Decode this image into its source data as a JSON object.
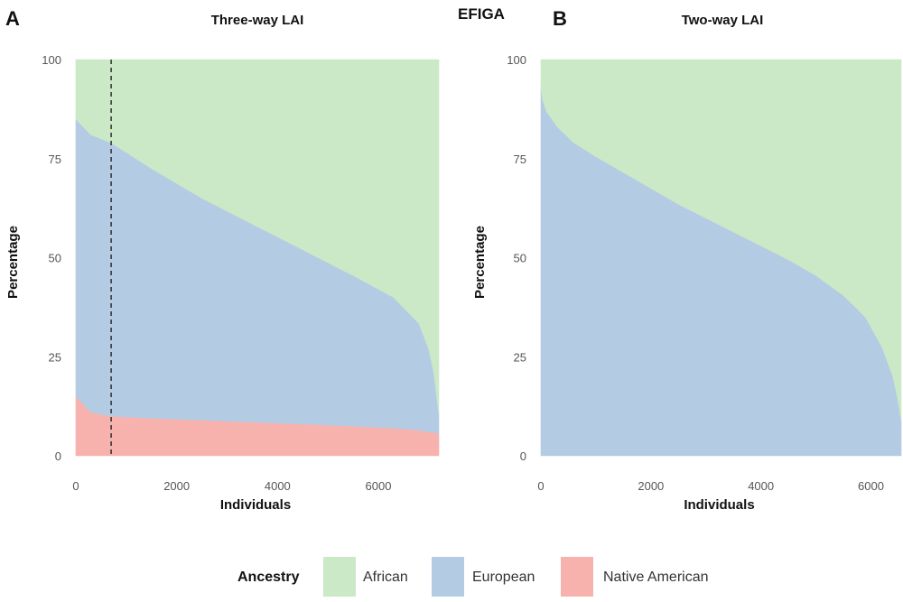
{
  "figure": {
    "main_title": "EFIGA",
    "panel_a_letter": "A",
    "panel_b_letter": "B",
    "legend_title": "Ancestry",
    "colors": {
      "African": "#cbe9c6",
      "European": "#b4cce3",
      "Native American": "#f7b2ad"
    }
  },
  "chart_data": [
    {
      "type": "area",
      "title": "Three-way LAI",
      "xlabel": "Individuals",
      "ylabel": "Percentage",
      "xlim": [
        0,
        7200
      ],
      "ylim": [
        0,
        100
      ],
      "xticks": [
        "0",
        "2000",
        "4000",
        "6000"
      ],
      "yticks": [
        "0",
        "25",
        "50",
        "75",
        "100"
      ],
      "stacking": "cumulative_percent",
      "vertical_line": {
        "x": 700,
        "style": "dashed"
      },
      "x": [
        0,
        300,
        700,
        1500,
        2500,
        3500,
        4500,
        5500,
        6300,
        6800,
        7000,
        7100,
        7200
      ],
      "series": [
        {
          "name": "Native American",
          "values": [
            15,
            11,
            10,
            9.5,
            9,
            8.5,
            8,
            7.5,
            7,
            6.5,
            6,
            6,
            5.5
          ]
        },
        {
          "name": "European",
          "values": [
            70,
            70,
            69,
            63,
            56,
            50,
            44,
            38,
            33,
            27,
            21,
            15,
            5
          ]
        },
        {
          "name": "African",
          "values": [
            15,
            19,
            21,
            27.5,
            35,
            41.5,
            48,
            54.5,
            60,
            66.5,
            73,
            79,
            89.5
          ]
        }
      ]
    },
    {
      "type": "area",
      "title": "Two-way LAI",
      "xlabel": "Individuals",
      "ylabel": "Percentage",
      "xlim": [
        0,
        6550
      ],
      "ylim": [
        0,
        100
      ],
      "xticks": [
        "0",
        "2000",
        "4000",
        "6000"
      ],
      "yticks": [
        "0",
        "25",
        "50",
        "75",
        "100"
      ],
      "stacking": "cumulative_percent",
      "x": [
        0,
        30,
        100,
        300,
        600,
        1000,
        1500,
        2000,
        2500,
        3000,
        3500,
        4000,
        4500,
        5000,
        5500,
        5900,
        6200,
        6400,
        6500,
        6550
      ],
      "series": [
        {
          "name": "European",
          "values": [
            93,
            90,
            87,
            83,
            79,
            75.5,
            71.5,
            67.5,
            63.5,
            60,
            56.5,
            53,
            49.5,
            45.5,
            40.5,
            35,
            27.5,
            20,
            13.5,
            9
          ]
        },
        {
          "name": "African",
          "values": [
            7,
            10,
            13,
            17,
            21,
            24.5,
            28.5,
            32.5,
            36.5,
            40,
            43.5,
            47,
            50.5,
            54.5,
            59.5,
            65,
            72.5,
            80,
            86.5,
            91
          ]
        }
      ]
    }
  ]
}
